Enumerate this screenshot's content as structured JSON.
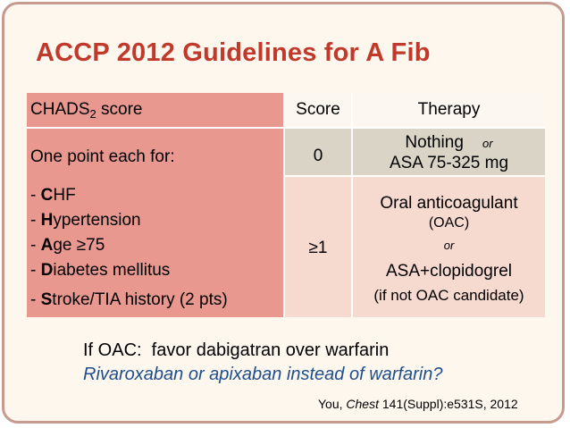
{
  "title": "ACCP 2012 Guidelines for A Fib",
  "table": {
    "header": {
      "left_prefix": "CHADS",
      "left_sub": "2",
      "left_suffix": " score",
      "score": "Score",
      "therapy": "Therapy"
    },
    "left": {
      "intro": "One point each for:",
      "items": [
        {
          "dash": "- ",
          "bold": "C",
          "rest": "HF"
        },
        {
          "dash": "- ",
          "bold": "H",
          "rest": "ypertension"
        },
        {
          "dash": "- ",
          "bold": "A",
          "rest": "ge ≥75"
        },
        {
          "dash": "- ",
          "bold": "D",
          "rest": "iabetes mellitus"
        },
        {
          "dash": "- ",
          "bold": "S",
          "rest": "troke/TIA history (2 pts)"
        }
      ]
    },
    "rows": [
      {
        "score": "0",
        "therapy_line1": "Nothing",
        "therapy_or": "or",
        "therapy_line2": "ASA 75-325 mg"
      },
      {
        "score": "≥1",
        "therapy_line1": "Oral anticoagulant",
        "therapy_line2": "(OAC)",
        "therapy_or": "or",
        "therapy_line3": "ASA+clopidogrel",
        "therapy_line4": "(if not OAC candidate)"
      }
    ]
  },
  "footer": {
    "line1": "If OAC:  favor dabigatran over warfarin",
    "line2": "Rivaroxaban or apixaban instead of warfarin?"
  },
  "citation": {
    "author": "You, ",
    "journal": "Chest",
    "rest": " 141(Suppl):e531S, 2012"
  },
  "colors": {
    "title": "#c0392b",
    "left_column": "#e8988f",
    "row1": "#d9d4c6",
    "row2": "#f6d9cf",
    "footer_italic": "#1f4e8c"
  }
}
